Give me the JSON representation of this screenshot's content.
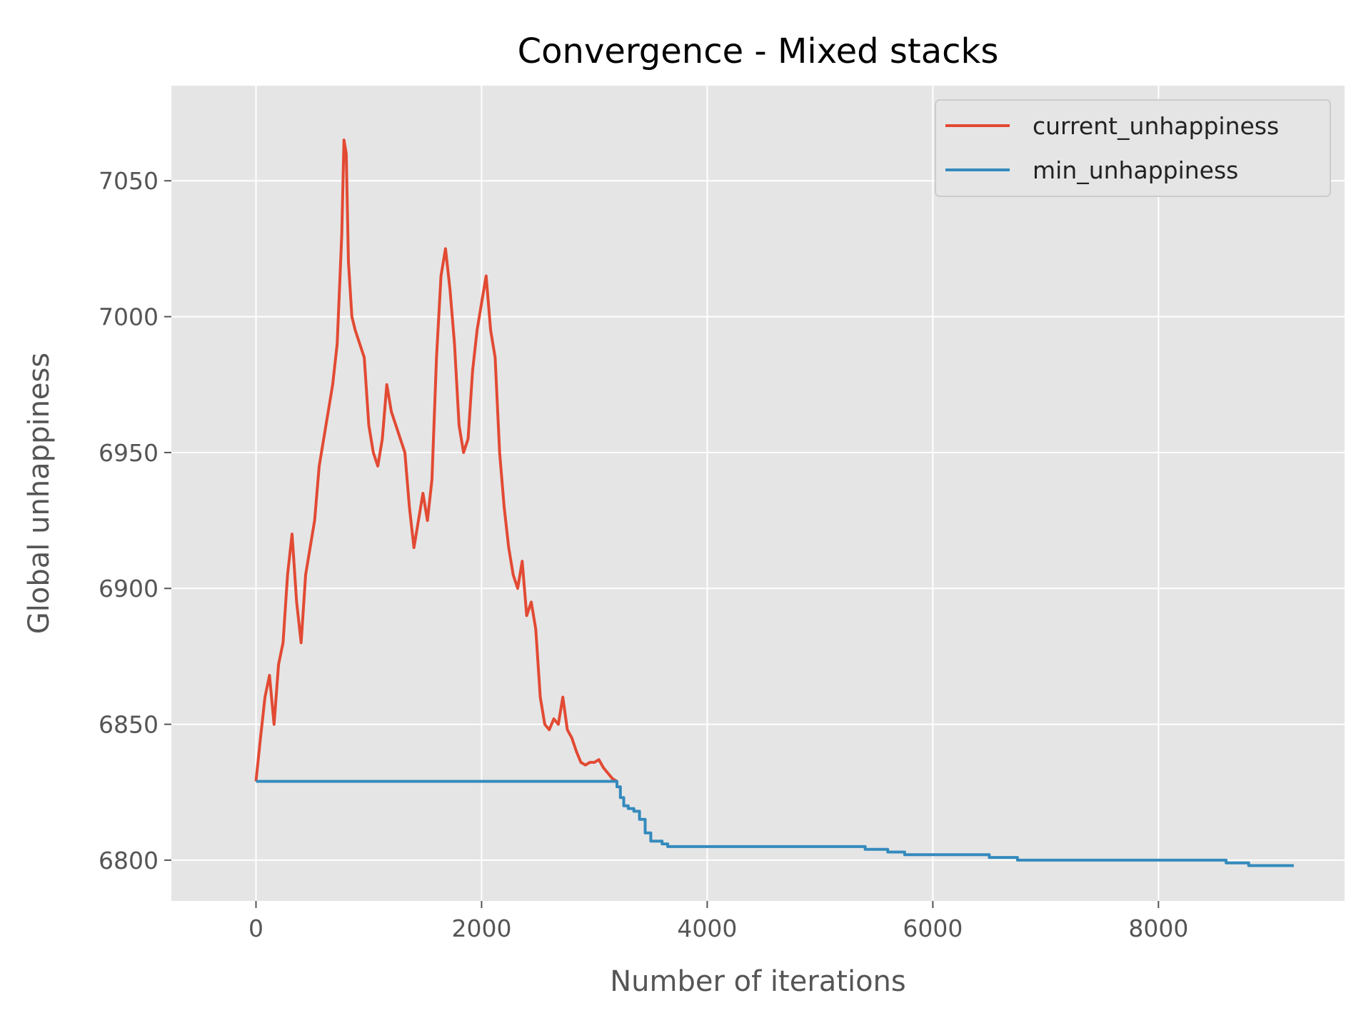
{
  "chart_data": {
    "type": "line",
    "title": "Convergence - Mixed stacks",
    "xlabel": "Number of iterations",
    "ylabel": "Global unhappiness",
    "xlim": [
      -750,
      9650
    ],
    "ylim": [
      6785,
      7085
    ],
    "xticks": [
      0,
      2000,
      4000,
      6000,
      8000
    ],
    "xtick_labels": [
      "0",
      "2000",
      "4000",
      "6000",
      "8000"
    ],
    "yticks": [
      6800,
      6850,
      6900,
      6950,
      7000,
      7050
    ],
    "ytick_labels": [
      "6800",
      "6850",
      "6900",
      "6950",
      "7000",
      "7050"
    ],
    "grid": true,
    "legend_position": "top-right",
    "colors": {
      "background": "#e5e5e5",
      "grid": "#ffffff",
      "current": "#e24a33",
      "min": "#348abd"
    },
    "series": [
      {
        "name": "current_unhappiness",
        "color": "#e24a33",
        "x": [
          0,
          40,
          80,
          120,
          160,
          200,
          240,
          280,
          320,
          360,
          400,
          440,
          480,
          520,
          560,
          600,
          640,
          680,
          720,
          760,
          780,
          800,
          820,
          850,
          880,
          920,
          960,
          1000,
          1040,
          1080,
          1120,
          1160,
          1200,
          1240,
          1280,
          1320,
          1360,
          1400,
          1440,
          1480,
          1520,
          1560,
          1600,
          1640,
          1680,
          1720,
          1760,
          1800,
          1840,
          1880,
          1920,
          1960,
          2000,
          2040,
          2080,
          2120,
          2160,
          2200,
          2240,
          2280,
          2320,
          2360,
          2400,
          2440,
          2480,
          2520,
          2560,
          2600,
          2640,
          2680,
          2720,
          2760,
          2800,
          2840,
          2880,
          2920,
          2960,
          3000,
          3040,
          3080,
          3120,
          3160,
          3200
        ],
        "y": [
          6829,
          6845,
          6860,
          6868,
          6850,
          6872,
          6880,
          6905,
          6920,
          6895,
          6880,
          6905,
          6915,
          6925,
          6945,
          6955,
          6965,
          6975,
          6990,
          7030,
          7065,
          7060,
          7020,
          7000,
          6995,
          6990,
          6985,
          6960,
          6950,
          6945,
          6955,
          6975,
          6965,
          6960,
          6955,
          6950,
          6930,
          6915,
          6925,
          6935,
          6925,
          6940,
          6985,
          7015,
          7025,
          7010,
          6990,
          6960,
          6950,
          6955,
          6980,
          6995,
          7005,
          7015,
          6995,
          6985,
          6950,
          6930,
          6915,
          6905,
          6900,
          6910,
          6890,
          6895,
          6885,
          6860,
          6850,
          6848,
          6852,
          6850,
          6860,
          6848,
          6845,
          6840,
          6836,
          6835,
          6836,
          6836,
          6837,
          6834,
          6832,
          6830,
          6829
        ]
      },
      {
        "name": "min_unhappiness",
        "color": "#348abd",
        "x": [
          0,
          3150,
          3200,
          3230,
          3260,
          3300,
          3350,
          3400,
          3450,
          3500,
          3550,
          3600,
          3650,
          3700,
          4000,
          5400,
          5600,
          5750,
          6000,
          6450,
          6500,
          6750,
          7000,
          8600,
          8800,
          9200
        ],
        "y": [
          6829,
          6829,
          6827,
          6823,
          6820,
          6819,
          6818,
          6815,
          6810,
          6807,
          6807,
          6806,
          6805,
          6805,
          6805,
          6804,
          6803,
          6802,
          6802,
          6802,
          6801,
          6800,
          6800,
          6799,
          6798,
          6798
        ]
      }
    ]
  }
}
